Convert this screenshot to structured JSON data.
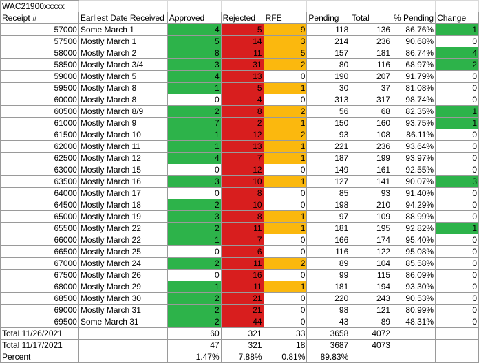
{
  "sheet_title": "WAC21900xxxxx",
  "headers": [
    "Receipt #",
    "Earliest Date Received",
    "Approved",
    "Rejected",
    "RFE",
    "Pending",
    "Total",
    "% Pending",
    "Change"
  ],
  "colors": {
    "approved": "#2db34a",
    "rejected": "#d81e1e",
    "rfe": "#fbb80e"
  },
  "rows": [
    {
      "receipt": "57000",
      "date": "Some March 1",
      "approved": "4",
      "rejected": "5",
      "rfe": "9",
      "pending": "118",
      "total": "136",
      "pct": "86.76%",
      "change": "1",
      "ag": true,
      "rr": true,
      "ry": true,
      "cg": true
    },
    {
      "receipt": "57500",
      "date": "Mostly March 1",
      "approved": "5",
      "rejected": "14",
      "rfe": "3",
      "pending": "214",
      "total": "236",
      "pct": "90.68%",
      "change": "0",
      "ag": true,
      "rr": true,
      "ry": true,
      "cg": false
    },
    {
      "receipt": "58000",
      "date": "Mostly March 2",
      "approved": "8",
      "rejected": "11",
      "rfe": "5",
      "pending": "157",
      "total": "181",
      "pct": "86.74%",
      "change": "4",
      "ag": true,
      "rr": true,
      "ry": true,
      "cg": true
    },
    {
      "receipt": "58500",
      "date": "Mostly March 3/4",
      "approved": "3",
      "rejected": "31",
      "rfe": "2",
      "pending": "80",
      "total": "116",
      "pct": "68.97%",
      "change": "2",
      "ag": true,
      "rr": true,
      "ry": true,
      "cg": true
    },
    {
      "receipt": "59000",
      "date": "Mostly March 5",
      "approved": "4",
      "rejected": "13",
      "rfe": "0",
      "pending": "190",
      "total": "207",
      "pct": "91.79%",
      "change": "0",
      "ag": true,
      "rr": true,
      "ry": false,
      "cg": false
    },
    {
      "receipt": "59500",
      "date": "Mostly March 8",
      "approved": "1",
      "rejected": "5",
      "rfe": "1",
      "pending": "30",
      "total": "37",
      "pct": "81.08%",
      "change": "0",
      "ag": true,
      "rr": true,
      "ry": true,
      "cg": false
    },
    {
      "receipt": "60000",
      "date": "Mostly March 8",
      "approved": "0",
      "rejected": "4",
      "rfe": "0",
      "pending": "313",
      "total": "317",
      "pct": "98.74%",
      "change": "0",
      "ag": false,
      "rr": true,
      "ry": false,
      "cg": false
    },
    {
      "receipt": "60500",
      "date": "Mostly March 8/9",
      "approved": "2",
      "rejected": "8",
      "rfe": "2",
      "pending": "56",
      "total": "68",
      "pct": "82.35%",
      "change": "1",
      "ag": true,
      "rr": true,
      "ry": true,
      "cg": true
    },
    {
      "receipt": "61000",
      "date": "Mostly March 9",
      "approved": "7",
      "rejected": "2",
      "rfe": "1",
      "pending": "150",
      "total": "160",
      "pct": "93.75%",
      "change": "1",
      "ag": true,
      "rr": true,
      "ry": true,
      "cg": true
    },
    {
      "receipt": "61500",
      "date": "Mostly March 10",
      "approved": "1",
      "rejected": "12",
      "rfe": "2",
      "pending": "93",
      "total": "108",
      "pct": "86.11%",
      "change": "0",
      "ag": true,
      "rr": true,
      "ry": true,
      "cg": false
    },
    {
      "receipt": "62000",
      "date": "Mostly March 11",
      "approved": "1",
      "rejected": "13",
      "rfe": "1",
      "pending": "221",
      "total": "236",
      "pct": "93.64%",
      "change": "0",
      "ag": true,
      "rr": true,
      "ry": true,
      "cg": false
    },
    {
      "receipt": "62500",
      "date": "Mostly March 12",
      "approved": "4",
      "rejected": "7",
      "rfe": "1",
      "pending": "187",
      "total": "199",
      "pct": "93.97%",
      "change": "0",
      "ag": true,
      "rr": true,
      "ry": true,
      "cg": false
    },
    {
      "receipt": "63000",
      "date": "Mostly March 15",
      "approved": "0",
      "rejected": "12",
      "rfe": "0",
      "pending": "149",
      "total": "161",
      "pct": "92.55%",
      "change": "0",
      "ag": false,
      "rr": true,
      "ry": false,
      "cg": false
    },
    {
      "receipt": "63500",
      "date": "Mostly March 16",
      "approved": "3",
      "rejected": "10",
      "rfe": "1",
      "pending": "127",
      "total": "141",
      "pct": "90.07%",
      "change": "3",
      "ag": true,
      "rr": true,
      "ry": true,
      "cg": true
    },
    {
      "receipt": "64000",
      "date": "Mostly March 17",
      "approved": "0",
      "rejected": "8",
      "rfe": "0",
      "pending": "85",
      "total": "93",
      "pct": "91.40%",
      "change": "0",
      "ag": false,
      "rr": true,
      "ry": false,
      "cg": false
    },
    {
      "receipt": "64500",
      "date": "Mostly March 18",
      "approved": "2",
      "rejected": "10",
      "rfe": "0",
      "pending": "198",
      "total": "210",
      "pct": "94.29%",
      "change": "0",
      "ag": true,
      "rr": true,
      "ry": false,
      "cg": false
    },
    {
      "receipt": "65000",
      "date": "Mostly March 19",
      "approved": "3",
      "rejected": "8",
      "rfe": "1",
      "pending": "97",
      "total": "109",
      "pct": "88.99%",
      "change": "0",
      "ag": true,
      "rr": true,
      "ry": true,
      "cg": false
    },
    {
      "receipt": "65500",
      "date": "Mostly March 22",
      "approved": "2",
      "rejected": "11",
      "rfe": "1",
      "pending": "181",
      "total": "195",
      "pct": "92.82%",
      "change": "1",
      "ag": true,
      "rr": true,
      "ry": true,
      "cg": true
    },
    {
      "receipt": "66000",
      "date": "Mostly March 22",
      "approved": "1",
      "rejected": "7",
      "rfe": "0",
      "pending": "166",
      "total": "174",
      "pct": "95.40%",
      "change": "0",
      "ag": true,
      "rr": true,
      "ry": false,
      "cg": false
    },
    {
      "receipt": "66500",
      "date": "Mostly March 25",
      "approved": "0",
      "rejected": "6",
      "rfe": "0",
      "pending": "116",
      "total": "122",
      "pct": "95.08%",
      "change": "0",
      "ag": false,
      "rr": true,
      "ry": false,
      "cg": false
    },
    {
      "receipt": "67000",
      "date": "Mostly March 24",
      "approved": "2",
      "rejected": "11",
      "rfe": "2",
      "pending": "89",
      "total": "104",
      "pct": "85.58%",
      "change": "0",
      "ag": true,
      "rr": true,
      "ry": true,
      "cg": false
    },
    {
      "receipt": "67500",
      "date": "Mostly March 26",
      "approved": "0",
      "rejected": "16",
      "rfe": "0",
      "pending": "99",
      "total": "115",
      "pct": "86.09%",
      "change": "0",
      "ag": false,
      "rr": true,
      "ry": false,
      "cg": false
    },
    {
      "receipt": "68000",
      "date": "Mostly March 29",
      "approved": "1",
      "rejected": "11",
      "rfe": "1",
      "pending": "181",
      "total": "194",
      "pct": "93.30%",
      "change": "0",
      "ag": true,
      "rr": true,
      "ry": true,
      "cg": false
    },
    {
      "receipt": "68500",
      "date": "Mostly March 30",
      "approved": "2",
      "rejected": "21",
      "rfe": "0",
      "pending": "220",
      "total": "243",
      "pct": "90.53%",
      "change": "0",
      "ag": true,
      "rr": true,
      "ry": false,
      "cg": false
    },
    {
      "receipt": "69000",
      "date": "Mostly March 31",
      "approved": "2",
      "rejected": "21",
      "rfe": "0",
      "pending": "98",
      "total": "121",
      "pct": "80.99%",
      "change": "0",
      "ag": true,
      "rr": true,
      "ry": false,
      "cg": false
    },
    {
      "receipt": "69500",
      "date": "Some March 31",
      "approved": "2",
      "rejected": "44",
      "rfe": "0",
      "pending": "43",
      "total": "89",
      "pct": "48.31%",
      "change": "0",
      "ag": true,
      "rr": true,
      "ry": false,
      "cg": false
    }
  ],
  "summary": [
    {
      "label": "Total 11/26/2021",
      "approved": "60",
      "rejected": "321",
      "rfe": "33",
      "pending": "3658",
      "total": "4072"
    },
    {
      "label": "Total 11/17/2021",
      "approved": "47",
      "rejected": "321",
      "rfe": "18",
      "pending": "3687",
      "total": "4073"
    },
    {
      "label": "Percent",
      "approved": "1.47%",
      "rejected": "7.88%",
      "rfe": "0.81%",
      "pending": "89.83%",
      "total": ""
    }
  ]
}
